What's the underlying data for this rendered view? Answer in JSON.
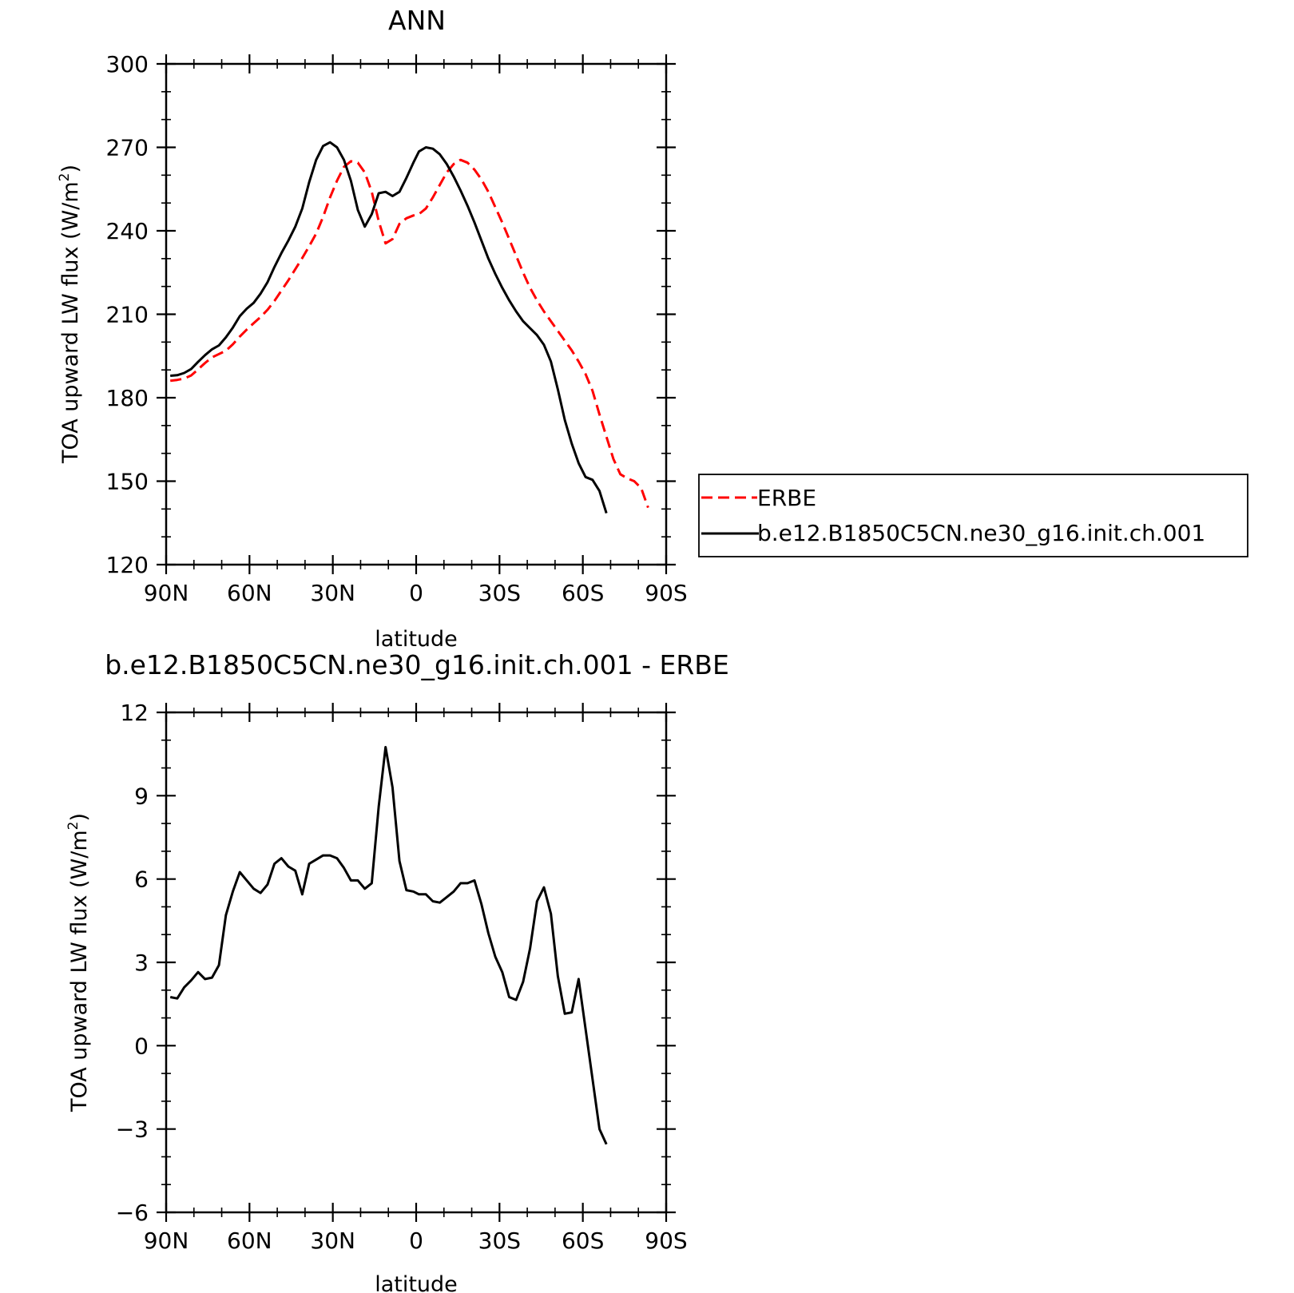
{
  "chart_data": [
    {
      "type": "line",
      "title": "ANN",
      "xlabel": "latitude",
      "ylabel": "TOA upward LW flux (W/m",
      "ylabel_sup": "2",
      "ylabel_end": ")",
      "xlim": [
        -90,
        90
      ],
      "ylim": [
        120,
        300
      ],
      "xticks": [
        -90,
        -60,
        -30,
        0,
        30,
        60,
        90
      ],
      "xtick_labels": [
        "90N",
        "60N",
        "30N",
        "0",
        "30S",
        "60S",
        "90S"
      ],
      "yticks": [
        120,
        150,
        180,
        210,
        240,
        270,
        300
      ],
      "ytick_labels": [
        "120",
        "150",
        "180",
        "210",
        "240",
        "270",
        "300"
      ],
      "grid": false,
      "legend_position": "right",
      "x": [
        -88.5,
        -86,
        -83.5,
        -81,
        -78.5,
        -76,
        -73.5,
        -71,
        -68.5,
        -66,
        -63.5,
        -61,
        -58.5,
        -56,
        -53.5,
        -51,
        -48.5,
        -46,
        -43.5,
        -41,
        -38.5,
        -36,
        -33.5,
        -31,
        -28.5,
        -26,
        -23.5,
        -21,
        -18.5,
        -16,
        -13.5,
        -11,
        -8.5,
        -6,
        -3.5,
        -1,
        1,
        3.5,
        6,
        8.5,
        11,
        13.5,
        16,
        18.5,
        21,
        23.5,
        26,
        28.5,
        31,
        33.5,
        36,
        38.5,
        41,
        43.5,
        46,
        48.5,
        51,
        53.5,
        56,
        58.5,
        61,
        63.5,
        66,
        68.5,
        71,
        73.5,
        76,
        78.5,
        81,
        83.5,
        86,
        88.5
      ],
      "series": [
        {
          "name": "ERBE",
          "color": "#ff0000",
          "dash": "dashed",
          "values": [
            186.1,
            186.4,
            186.9,
            188,
            190.2,
            192.5,
            194.5,
            195.7,
            196.9,
            199.2,
            202,
            204.5,
            206.8,
            209,
            211.6,
            214.8,
            218.5,
            222.2,
            226.2,
            230.2,
            234.5,
            239,
            245,
            252,
            258,
            263,
            265,
            264.5,
            261,
            254,
            243.5,
            235.5,
            237,
            242.5,
            244.5,
            245.5,
            246,
            248,
            252,
            256.5,
            261,
            264,
            265.5,
            264.5,
            262,
            258.5,
            254,
            248.5,
            243,
            237,
            231,
            225,
            219.5,
            215,
            211,
            207.5,
            204,
            200.5,
            197,
            193,
            188.5,
            182.5,
            174,
            166,
            158,
            152.5,
            151,
            150,
            147.5,
            140.5,
            null,
            null
          ]
        },
        {
          "name": "b.e12.B1850C5CN.ne30_g16.init.ch.001",
          "color": "#000000",
          "dash": "solid",
          "values": [
            187.9,
            188.1,
            188.9,
            190.3,
            192.9,
            195.3,
            197.4,
            198.8,
            201.7,
            205.2,
            209.3,
            212,
            214.1,
            217.4,
            221.5,
            227,
            232,
            236.5,
            241.5,
            248,
            257.5,
            265.5,
            270.5,
            271.8,
            270,
            265.5,
            258,
            247.5,
            241.5,
            246,
            253.5,
            254,
            252.5,
            254,
            259,
            264.5,
            268.5,
            270,
            269.5,
            267.5,
            264,
            259.5,
            254.5,
            249,
            243,
            236.5,
            230,
            224.5,
            219.5,
            215,
            211,
            207.5,
            205,
            202.5,
            199,
            193,
            183,
            172,
            163.5,
            156.5,
            151.5,
            150.5,
            146.5,
            138.5,
            null,
            null,
            null,
            null,
            null,
            null,
            null,
            null
          ]
        }
      ]
    },
    {
      "type": "line",
      "title": "b.e12.B1850C5CN.ne30_g16.init.ch.001 - ERBE",
      "xlabel": "latitude",
      "ylabel": "TOA upward LW flux (W/m",
      "ylabel_sup": "2",
      "ylabel_end": ")",
      "xlim": [
        -90,
        90
      ],
      "ylim": [
        -6,
        12
      ],
      "xticks": [
        -90,
        -60,
        -30,
        0,
        30,
        60,
        90
      ],
      "xtick_labels": [
        "90N",
        "60N",
        "30N",
        "0",
        "30S",
        "60S",
        "90S"
      ],
      "yticks": [
        -6,
        -3,
        0,
        3,
        6,
        9,
        12
      ],
      "ytick_labels": [
        "−6",
        "−3",
        "0",
        "3",
        "6",
        "9",
        "12"
      ],
      "grid": false,
      "x": [
        -88.5,
        -86,
        -83.5,
        -81,
        -78.5,
        -76,
        -73.5,
        -71,
        -68.5,
        -66,
        -63.5,
        -61,
        -58.5,
        -56,
        -53.5,
        -51,
        -48.5,
        -46,
        -43.5,
        -41,
        -38.5,
        -36,
        -33.5,
        -31,
        -28.5,
        -26,
        -23.5,
        -21,
        -18.5,
        -16,
        -13.5,
        -11,
        -8.5,
        -6,
        -3.5,
        -1,
        1,
        3.5,
        6,
        8.5,
        11,
        13.5,
        16,
        18.5,
        21,
        23.5,
        26,
        28.5,
        31,
        33.5,
        36,
        38.5,
        41,
        43.5,
        46,
        48.5,
        51,
        53.5,
        56,
        58.5,
        61,
        63.5,
        66,
        68.5,
        71,
        73.5,
        76,
        78.5,
        81,
        83.5,
        86,
        88.5
      ],
      "series": [
        {
          "name": "",
          "color": "#000000",
          "dash": "solid",
          "values": [
            1.75,
            1.7,
            2.1,
            2.35,
            2.65,
            2.4,
            2.45,
            2.9,
            4.7,
            5.55,
            6.25,
            5.95,
            5.65,
            5.5,
            5.8,
            6.55,
            6.75,
            6.45,
            6.3,
            5.45,
            6.55,
            6.7,
            6.85,
            6.85,
            6.75,
            6.4,
            5.95,
            5.95,
            5.65,
            5.85,
            8.6,
            10.75,
            9.3,
            6.65,
            5.6,
            5.55,
            5.45,
            5.45,
            5.2,
            5.15,
            5.35,
            5.55,
            5.85,
            5.85,
            5.95,
            5.1,
            4.05,
            3.2,
            2.65,
            1.75,
            1.65,
            2.3,
            3.5,
            5.2,
            5.7,
            4.75,
            2.5,
            1.15,
            1.2,
            2.4,
            0.6,
            -1.2,
            -3.0,
            -3.55,
            null,
            null,
            null,
            null,
            null,
            null,
            null,
            null
          ]
        }
      ]
    }
  ],
  "legend": {
    "entries": [
      {
        "label": "ERBE",
        "color": "#ff0000",
        "dash": "dashed"
      },
      {
        "label": "b.e12.B1850C5CN.ne30_g16.init.ch.001",
        "color": "#000000",
        "dash": "solid"
      }
    ]
  }
}
